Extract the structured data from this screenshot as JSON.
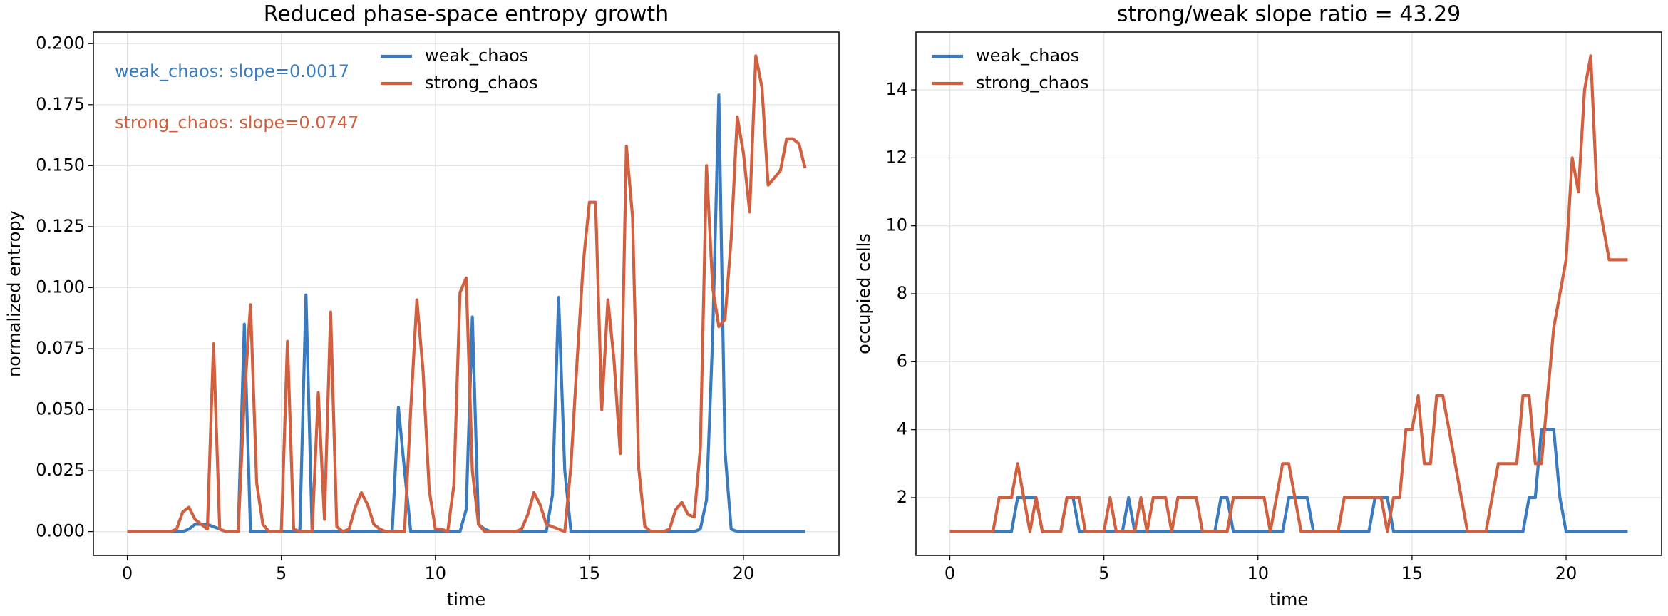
{
  "chart_data": [
    {
      "type": "line",
      "title": "Reduced phase-space entropy growth",
      "xlabel": "time",
      "ylabel": "normalized entropy",
      "x": [
        0,
        0.2,
        0.4,
        0.6,
        0.8,
        1,
        1.2,
        1.4,
        1.6,
        1.8,
        2,
        2.2,
        2.4,
        2.6,
        2.8,
        3,
        3.2,
        3.4,
        3.6,
        3.8,
        4,
        4.2,
        4.4,
        4.6,
        4.8,
        5,
        5.2,
        5.4,
        5.6,
        5.8,
        6,
        6.2,
        6.4,
        6.6,
        6.8,
        7,
        7.2,
        7.4,
        7.6,
        7.8,
        8,
        8.2,
        8.4,
        8.6,
        8.8,
        9,
        9.2,
        9.4,
        9.6,
        9.8,
        10,
        10.2,
        10.4,
        10.6,
        10.8,
        11,
        11.2,
        11.4,
        11.6,
        11.8,
        12,
        12.2,
        12.4,
        12.6,
        12.8,
        13,
        13.2,
        13.4,
        13.6,
        13.8,
        14,
        14.2,
        14.4,
        14.6,
        14.8,
        15,
        15.2,
        15.4,
        15.6,
        15.8,
        16,
        16.2,
        16.4,
        16.6,
        16.8,
        17,
        17.2,
        17.4,
        17.6,
        17.8,
        18,
        18.2,
        18.4,
        18.6,
        18.8,
        19,
        19.2,
        19.4,
        19.6,
        19.8,
        20,
        20.2,
        20.4,
        20.6,
        20.8,
        21,
        21.2,
        21.4,
        21.6,
        21.8,
        22
      ],
      "series": [
        {
          "name": "weak_chaos",
          "color": "#3a7bbf",
          "values": [
            0,
            0,
            0,
            0,
            0,
            0,
            0,
            0,
            0,
            0,
            0.001,
            0.003,
            0.003,
            0.003,
            0.002,
            0.001,
            0,
            0,
            0,
            0.085,
            0,
            0,
            0,
            0,
            0,
            0,
            0,
            0,
            0,
            0.097,
            0,
            0,
            0,
            0,
            0,
            0,
            0,
            0,
            0,
            0,
            0,
            0,
            0,
            0,
            0.051,
            0.025,
            0,
            0,
            0,
            0,
            0,
            0,
            0,
            0,
            0,
            0.009,
            0.088,
            0.003,
            0.001,
            0,
            0,
            0,
            0,
            0,
            0,
            0,
            0,
            0,
            0,
            0.015,
            0.096,
            0.025,
            0,
            0,
            0,
            0,
            0,
            0,
            0,
            0,
            0,
            0,
            0,
            0,
            0,
            0,
            0,
            0,
            0,
            0,
            0,
            0,
            0,
            0.001,
            0.013,
            0.08,
            0.179,
            0.033,
            0.001,
            0,
            0,
            0,
            0,
            0,
            0,
            0,
            0,
            0,
            0,
            0,
            0
          ]
        },
        {
          "name": "strong_chaos",
          "color": "#d0603f",
          "values": [
            0,
            0,
            0,
            0,
            0,
            0,
            0,
            0,
            0.001,
            0.008,
            0.01,
            0.005,
            0.003,
            0.001,
            0.077,
            0.001,
            0,
            0,
            0,
            0.055,
            0.093,
            0.02,
            0.003,
            0,
            0,
            0,
            0.078,
            0.001,
            0,
            0,
            0,
            0.057,
            0.005,
            0.09,
            0.002,
            0,
            0.001,
            0.01,
            0.016,
            0.011,
            0.003,
            0.001,
            0,
            0,
            0,
            0,
            0.05,
            0.095,
            0.066,
            0.017,
            0.001,
            0.001,
            0,
            0.019,
            0.098,
            0.104,
            0.025,
            0.003,
            0,
            0,
            0,
            0,
            0,
            0,
            0.001,
            0.007,
            0.016,
            0.011,
            0.003,
            0.002,
            0.001,
            0,
            0.027,
            0.07,
            0.11,
            0.135,
            0.135,
            0.05,
            0.095,
            0.07,
            0.032,
            0.158,
            0.129,
            0.026,
            0.002,
            0,
            0,
            0,
            0.001,
            0.009,
            0.012,
            0.007,
            0.006,
            0.034,
            0.15,
            0.1,
            0.084,
            0.087,
            0.12,
            0.17,
            0.155,
            0.131,
            0.195,
            0.182,
            0.142,
            0.145,
            0.148,
            0.161,
            0.161,
            0.159,
            0.149
          ]
        }
      ],
      "annotations": [
        {
          "text": "weak_chaos: slope=0.0017",
          "color": "#3a7bbf"
        },
        {
          "text": "strong_chaos: slope=0.0747",
          "color": "#d0603f"
        }
      ],
      "xlim": [
        -1.1,
        23.1
      ],
      "ylim": [
        -0.00975,
        0.20475
      ],
      "xticks": [
        0,
        5,
        10,
        15,
        20
      ],
      "yticks": [
        {
          "value": 0,
          "label": "0.000"
        },
        {
          "value": 0.025,
          "label": "0.025"
        },
        {
          "value": 0.05,
          "label": "0.050"
        },
        {
          "value": 0.075,
          "label": "0.075"
        },
        {
          "value": 0.1,
          "label": "0.100"
        },
        {
          "value": 0.125,
          "label": "0.125"
        },
        {
          "value": 0.15,
          "label": "0.150"
        },
        {
          "value": 0.175,
          "label": "0.175"
        },
        {
          "value": 0.2,
          "label": "0.200"
        }
      ],
      "grid": true,
      "legend": "upper center"
    },
    {
      "type": "line",
      "title": "strong/weak slope ratio = 43.29",
      "xlabel": "time",
      "ylabel": "occupied cells",
      "x": [
        0,
        0.2,
        0.4,
        0.6,
        0.8,
        1,
        1.2,
        1.4,
        1.6,
        1.8,
        2,
        2.2,
        2.4,
        2.6,
        2.8,
        3,
        3.2,
        3.4,
        3.6,
        3.8,
        4,
        4.2,
        4.4,
        4.6,
        4.8,
        5,
        5.2,
        5.4,
        5.6,
        5.8,
        6,
        6.2,
        6.4,
        6.6,
        6.8,
        7,
        7.2,
        7.4,
        7.6,
        7.8,
        8,
        8.2,
        8.4,
        8.6,
        8.8,
        9,
        9.2,
        9.4,
        9.6,
        9.8,
        10,
        10.2,
        10.4,
        10.6,
        10.8,
        11,
        11.2,
        11.4,
        11.6,
        11.8,
        12,
        12.2,
        12.4,
        12.6,
        12.8,
        13,
        13.2,
        13.4,
        13.6,
        13.8,
        14,
        14.2,
        14.4,
        14.6,
        14.8,
        15,
        15.2,
        15.4,
        15.6,
        15.8,
        16,
        16.2,
        16.4,
        16.6,
        16.8,
        17,
        17.2,
        17.4,
        17.6,
        17.8,
        18,
        18.2,
        18.4,
        18.6,
        18.8,
        19,
        19.2,
        19.4,
        19.6,
        19.8,
        20,
        20.2,
        20.4,
        20.6,
        20.8,
        21,
        21.2,
        21.4,
        21.6,
        21.8,
        22
      ],
      "series": [
        {
          "name": "weak_chaos",
          "color": "#3a7bbf",
          "values": [
            1,
            1,
            1,
            1,
            1,
            1,
            1,
            1,
            1,
            1,
            1,
            2,
            2,
            2,
            2,
            1,
            1,
            1,
            1,
            2,
            2,
            1,
            1,
            1,
            1,
            1,
            1,
            1,
            1,
            2,
            1,
            1,
            1,
            1,
            1,
            1,
            1,
            1,
            1,
            1,
            1,
            1,
            1,
            1,
            2,
            2,
            1,
            1,
            1,
            1,
            1,
            1,
            1,
            1,
            1,
            2,
            2,
            2,
            2,
            1,
            1,
            1,
            1,
            1,
            1,
            1,
            1,
            1,
            1,
            2,
            2,
            2,
            1,
            1,
            1,
            1,
            1,
            1,
            1,
            1,
            1,
            1,
            1,
            1,
            1,
            1,
            1,
            1,
            1,
            1,
            1,
            1,
            1,
            1,
            2,
            2,
            4,
            4,
            4,
            2,
            1,
            1,
            1,
            1,
            1,
            1,
            1,
            1,
            1,
            1,
            1
          ]
        },
        {
          "name": "strong_chaos",
          "color": "#d0603f",
          "values": [
            1,
            1,
            1,
            1,
            1,
            1,
            1,
            1,
            2,
            2,
            2,
            3,
            2,
            1,
            2,
            1,
            1,
            1,
            1,
            2,
            2,
            2,
            1,
            1,
            1,
            1,
            2,
            1,
            1,
            1,
            1,
            2,
            1,
            2,
            2,
            2,
            1,
            2,
            2,
            2,
            2,
            1,
            1,
            1,
            1,
            1,
            2,
            2,
            2,
            2,
            2,
            2,
            1,
            2,
            3,
            3,
            2,
            1,
            1,
            1,
            1,
            1,
            1,
            1,
            2,
            2,
            2,
            2,
            2,
            2,
            2,
            1,
            2,
            2,
            4,
            4,
            5,
            3,
            3,
            5,
            5,
            4,
            3,
            2,
            1,
            1,
            1,
            1,
            2,
            3,
            3,
            3,
            3,
            5,
            5,
            3,
            3,
            5,
            7,
            8,
            9,
            12,
            11,
            14,
            15,
            11,
            10,
            9,
            9,
            9,
            9
          ]
        }
      ],
      "xlim": [
        -1.1,
        23.1
      ],
      "ylim": [
        0.3,
        15.7
      ],
      "xticks": [
        0,
        5,
        10,
        15,
        20
      ],
      "yticks": [
        2,
        4,
        6,
        8,
        10,
        12,
        14
      ],
      "grid": true,
      "legend": "upper left"
    }
  ]
}
